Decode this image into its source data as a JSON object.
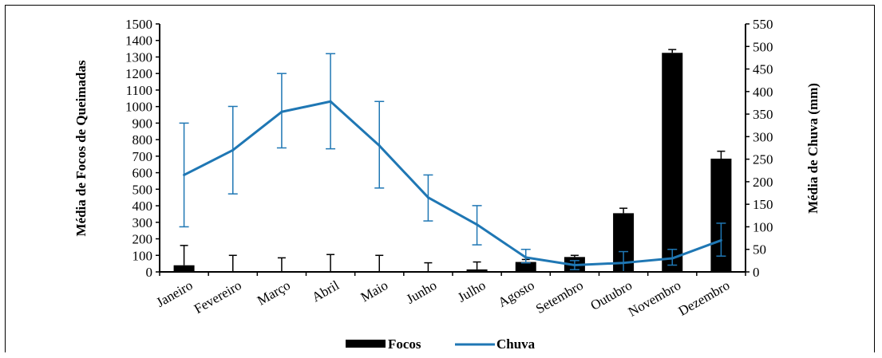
{
  "chart_data": {
    "type": "bar+line",
    "categories": [
      "Janeiro",
      "Fevereiro",
      "Março",
      "Abril",
      "Maio",
      "Junho",
      "Julho",
      "Agosto",
      "Setembro",
      "Outubro",
      "Novembro",
      "Dezembro"
    ],
    "series": [
      {
        "name": "Focos",
        "type": "bar",
        "axis": "left",
        "color": "#000000",
        "values": [
          40,
          0,
          0,
          0,
          0,
          0,
          15,
          60,
          90,
          355,
          1325,
          685
        ],
        "error_upper": [
          160,
          100,
          85,
          105,
          100,
          55,
          60,
          75,
          100,
          385,
          1345,
          730
        ]
      },
      {
        "name": "Chuva",
        "type": "line",
        "axis": "right",
        "color": "#1f77b4",
        "values": [
          215,
          270,
          355,
          378,
          280,
          165,
          105,
          32,
          15,
          20,
          30,
          70
        ],
        "error_low": [
          100,
          173,
          275,
          273,
          186,
          113,
          60,
          20,
          5,
          0,
          15,
          35
        ],
        "error_high": [
          330,
          367,
          440,
          484,
          378,
          215,
          147,
          50,
          25,
          45,
          50,
          108
        ]
      }
    ],
    "ylabel": "Média de Focos de Queimadas",
    "y2label": "Média de Chuva (mm)",
    "ylim": [
      0,
      1500
    ],
    "y2lim": [
      0,
      550
    ],
    "yticks": [
      "0",
      "100",
      "200",
      "300",
      "400",
      "500",
      "600",
      "700",
      "800",
      "900",
      "1000",
      "1100",
      "1200",
      "1300",
      "1400",
      "1500"
    ],
    "y2ticks": [
      "0",
      "50",
      "100",
      "150",
      "200",
      "250",
      "300",
      "350",
      "400",
      "450",
      "500",
      "550"
    ],
    "legend": [
      "Focos",
      "Chuva"
    ],
    "legend_position": "bottom",
    "grid": false
  }
}
